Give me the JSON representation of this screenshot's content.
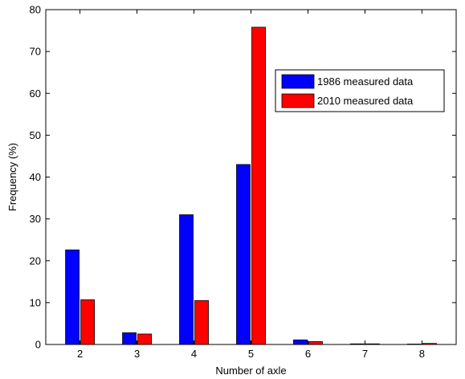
{
  "chart_data": {
    "type": "bar",
    "categories": [
      "2",
      "3",
      "4",
      "5",
      "6",
      "7",
      "8"
    ],
    "series": [
      {
        "name": "1986 measured data",
        "color": "#0000ff",
        "values": [
          22.6,
          2.8,
          31.0,
          43.0,
          1.1,
          0.15,
          0.1
        ]
      },
      {
        "name": "2010 measured data",
        "color": "#ff0000",
        "values": [
          10.7,
          2.5,
          10.5,
          75.8,
          0.7,
          0.15,
          0.25
        ]
      }
    ],
    "title": "",
    "xlabel": "Number of axle",
    "ylabel": "Frequency (%)",
    "ylim": [
      0,
      80
    ],
    "yticks": [
      0,
      10,
      20,
      30,
      40,
      50,
      60,
      70,
      80
    ],
    "grid": false,
    "legend": "top-right"
  }
}
